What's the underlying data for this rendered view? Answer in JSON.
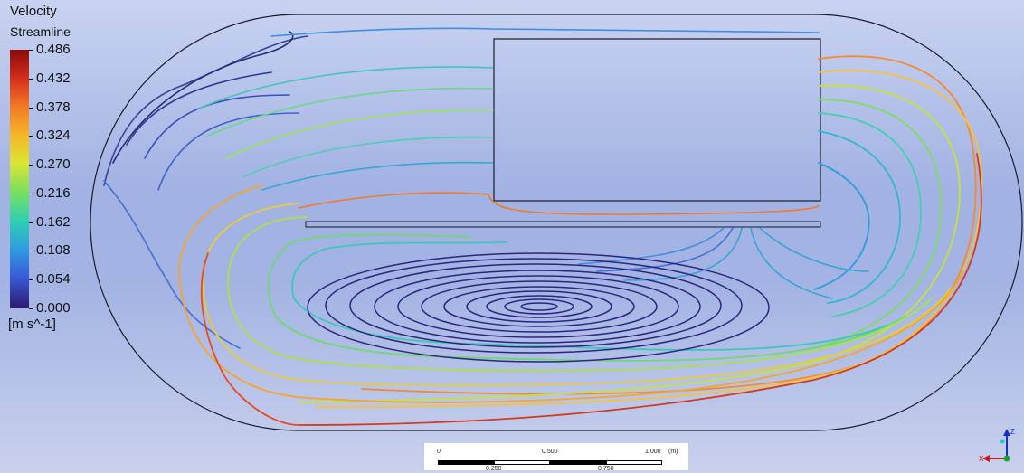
{
  "legend": {
    "title_line1": "Velocity",
    "title_line2": "Streamline",
    "ticks": [
      "0.486",
      "0.432",
      "0.378",
      "0.324",
      "0.270",
      "0.216",
      "0.162",
      "0.108",
      "0.054",
      "0.000"
    ],
    "units": "[m s^-1]",
    "colormap": [
      "#8b0a08",
      "#d42d1c",
      "#f27a24",
      "#f6b62b",
      "#d9e633",
      "#79e05f",
      "#2fd0b2",
      "#2f9ce0",
      "#3a5ad8",
      "#2a1a6d"
    ]
  },
  "scale_bar": {
    "top_labels": [
      "0",
      "0.500",
      "1.000"
    ],
    "unit": "(m)",
    "bottom_labels": [
      "0.250",
      "0.750"
    ]
  },
  "axes": {
    "z_label": "Z",
    "x_label": "X"
  },
  "colors": {
    "background_top": "#c9d3f1",
    "background_mid": "#a2b2e3",
    "outline": "#1a1a2a"
  }
}
